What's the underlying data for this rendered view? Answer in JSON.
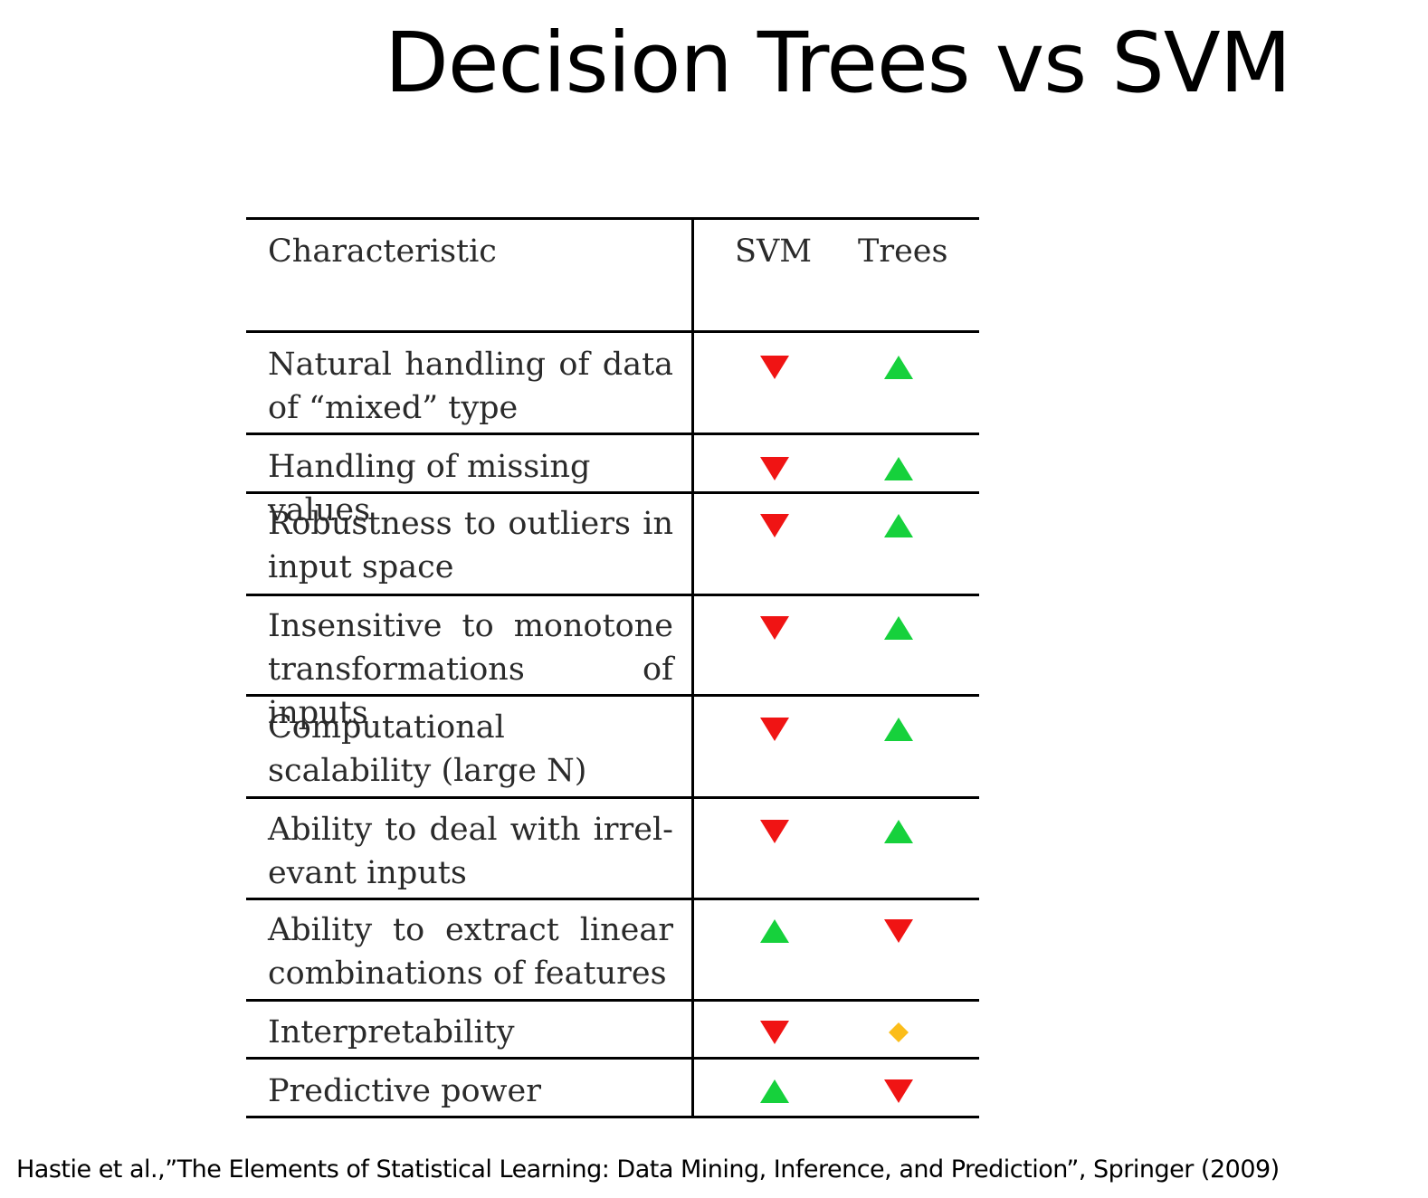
{
  "title": "Decision Trees vs SVM",
  "table": {
    "headers": {
      "characteristic": "Characteristic",
      "svm": "SVM",
      "trees": "Trees"
    },
    "rows": [
      {
        "characteristic": "Natural handling of data of “mixed” type",
        "svm": "down",
        "trees": "up"
      },
      {
        "characteristic": "Handling of missing values",
        "svm": "down",
        "trees": "up"
      },
      {
        "characteristic": "Robustness to outliers in input space",
        "svm": "down",
        "trees": "up"
      },
      {
        "characteristic": "Insensitive to monotone transformations of inputs",
        "svm": "down",
        "trees": "up"
      },
      {
        "characteristic": "Computational scalability (large N)",
        "svm": "down",
        "trees": "up"
      },
      {
        "characteristic": "Ability to deal with irrel- evant inputs",
        "svm": "down",
        "trees": "up"
      },
      {
        "characteristic": "Ability to extract linear combinations of features",
        "svm": "up",
        "trees": "down"
      },
      {
        "characteristic": "Interpretability",
        "svm": "down",
        "trees": "diamond"
      },
      {
        "characteristic": "Predictive power",
        "svm": "up",
        "trees": "down"
      }
    ]
  },
  "marker_colors": {
    "up": "#16d13c",
    "down": "#f01414",
    "diamond": "#fbbd1a"
  },
  "citation": "Hastie et al.,”The Elements of Statistical Learning: Data Mining, Inference, and Prediction”, Springer (2009)"
}
